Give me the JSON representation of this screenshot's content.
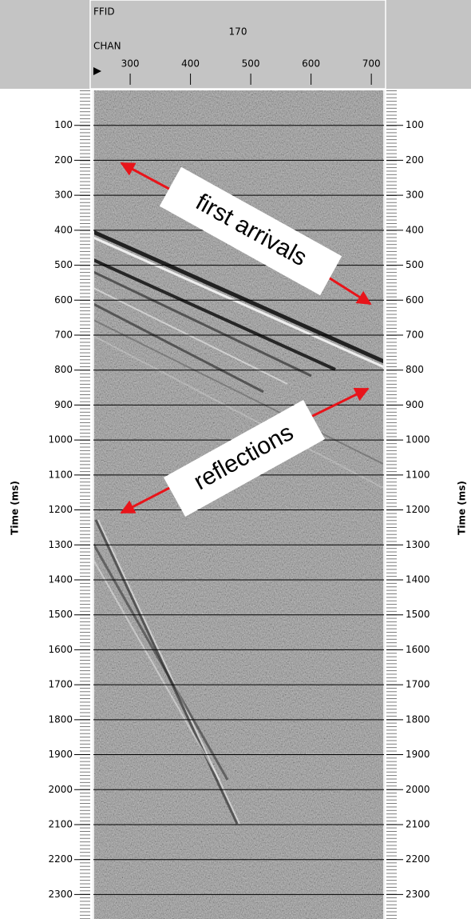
{
  "chart_data": {
    "type": "seismic",
    "ffid_label": "FFID",
    "ffid": 170,
    "x_label": "CHAN",
    "xlim": [
      239,
      721
    ],
    "xticks": [
      300,
      400,
      500,
      600,
      700
    ],
    "y_label": "Time (ms)",
    "ylim": [
      0,
      2370
    ],
    "yticks": [
      100,
      200,
      300,
      400,
      500,
      600,
      700,
      800,
      900,
      1000,
      1100,
      1200,
      1300,
      1400,
      1500,
      1600,
      1700,
      1800,
      1900,
      2000,
      2100,
      2200,
      2300
    ],
    "grid": true,
    "annotations": [
      "first arrivals",
      "reflections"
    ]
  }
}
